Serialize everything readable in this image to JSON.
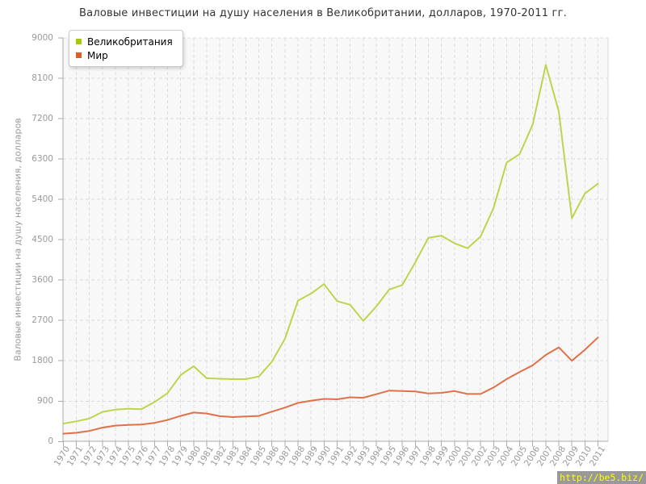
{
  "title": "Валовые инвестиции на душу населения в Великобритании, долларов, 1970-2011 гг.",
  "watermark": "http://be5.biz/",
  "colors": {
    "watermark_bg": "#999999",
    "watermark_text": "#ffff00",
    "axis": "#aaaaaa",
    "grid": "#dddddd",
    "plot_bg": "#f8f8f8",
    "tick_label": "#999999",
    "title_text": "#333333"
  },
  "chart_data": {
    "type": "line",
    "title": "Валовые инвестиции на душу населения в Великобритании, долларов, 1970-2011 гг.",
    "xlabel": "",
    "ylabel": "Валовые инвестиции на душу населения, долларов",
    "ylim": [
      0,
      9000
    ],
    "ytick_step": 900,
    "yticks": [
      0,
      900,
      1800,
      2700,
      3600,
      4500,
      5400,
      6300,
      7200,
      8100,
      9000
    ],
    "grid": true,
    "legend_position": "top-left",
    "x": [
      1970,
      1971,
      1972,
      1973,
      1974,
      1975,
      1976,
      1977,
      1978,
      1979,
      1980,
      1981,
      1982,
      1983,
      1984,
      1985,
      1986,
      1987,
      1988,
      1989,
      1990,
      1991,
      1992,
      1993,
      1994,
      1995,
      1996,
      1997,
      1998,
      1999,
      2000,
      2001,
      2002,
      2003,
      2004,
      2005,
      2006,
      2007,
      2008,
      2009,
      2010,
      2011
    ],
    "series": [
      {
        "id": "uk",
        "name": "Великобритания",
        "color": "#bdd54e",
        "swatch": "#a6c80e",
        "values": [
          400,
          450,
          510,
          660,
          710,
          730,
          720,
          880,
          1080,
          1480,
          1680,
          1410,
          1400,
          1390,
          1390,
          1450,
          1780,
          2290,
          3140,
          3300,
          3510,
          3130,
          3050,
          2690,
          3010,
          3390,
          3490,
          4000,
          4540,
          4590,
          4420,
          4310,
          4570,
          5210,
          6220,
          6410,
          7070,
          8400,
          7360,
          4980,
          5530,
          5750
        ]
      },
      {
        "id": "world",
        "name": "Мир",
        "color": "#e0714a",
        "swatch": "#dc5f28",
        "values": [
          175,
          195,
          235,
          310,
          355,
          370,
          380,
          415,
          480,
          570,
          645,
          625,
          565,
          545,
          560,
          570,
          665,
          755,
          860,
          910,
          950,
          940,
          985,
          975,
          1055,
          1135,
          1125,
          1115,
          1070,
          1085,
          1125,
          1060,
          1060,
          1205,
          1390,
          1550,
          1700,
          1930,
          2100,
          1800,
          2045,
          2320
        ]
      }
    ]
  }
}
